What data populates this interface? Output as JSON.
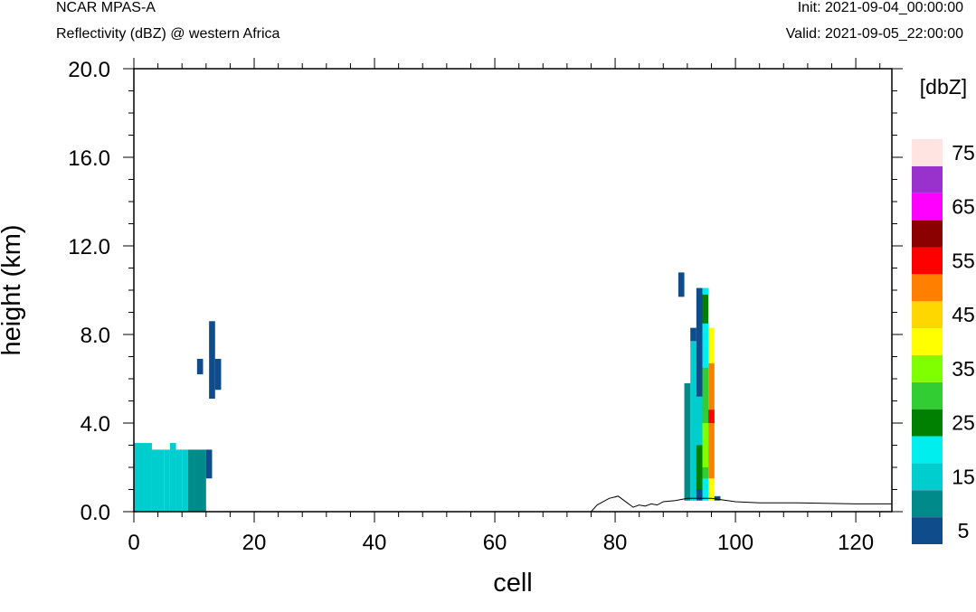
{
  "header": {
    "model": "NCAR MPAS-A",
    "field": "Reflectivity (dBZ) @ western Africa",
    "init": "Init: 2021-09-04_00:00:00",
    "valid": "Valid: 2021-09-05_22:00:00"
  },
  "chart_data": {
    "type": "heatmap",
    "xlabel": "cell",
    "ylabel": "height (km)",
    "xlim": [
      0,
      126
    ],
    "ylim": [
      0,
      20
    ],
    "xticks": [
      0,
      20,
      40,
      60,
      80,
      100,
      120
    ],
    "yticks": [
      0,
      4,
      8,
      12,
      16,
      20
    ],
    "ytick_labels": [
      "0.0",
      "4.0",
      "8.0",
      "12.0",
      "16.0",
      "20.0"
    ],
    "colorbar": {
      "unit": "[dbZ]",
      "levels": [
        5,
        10,
        15,
        20,
        25,
        30,
        35,
        40,
        45,
        50,
        55,
        60,
        65,
        70,
        75
      ],
      "tick_labels": [
        "5",
        "15",
        "25",
        "35",
        "45",
        "55",
        "65",
        "75"
      ],
      "colors": [
        "#0f4c8c",
        "#008b8b",
        "#00cdcd",
        "#00eeee",
        "#008000",
        "#32cd32",
        "#7fff00",
        "#ffff00",
        "#ffd700",
        "#ff7f00",
        "#ff0000",
        "#8b0000",
        "#ff00ff",
        "#9932cc",
        "#ffe4e1"
      ]
    },
    "cells": [
      {
        "x": [
          0,
          3
        ],
        "y": [
          0,
          3.1
        ],
        "dbz": 15
      },
      {
        "x": [
          3,
          5
        ],
        "y": [
          0,
          2.8
        ],
        "dbz": 15
      },
      {
        "x": [
          5,
          6
        ],
        "y": [
          0,
          2.8
        ],
        "dbz": 15
      },
      {
        "x": [
          6,
          7
        ],
        "y": [
          0,
          3.1
        ],
        "dbz": 15
      },
      {
        "x": [
          7,
          8
        ],
        "y": [
          0,
          2.8
        ],
        "dbz": 15
      },
      {
        "x": [
          8,
          9
        ],
        "y": [
          0,
          2.8
        ],
        "dbz": 15
      },
      {
        "x": [
          9,
          10
        ],
        "y": [
          0,
          2.8
        ],
        "dbz": 10
      },
      {
        "x": [
          10,
          12
        ],
        "y": [
          0,
          2.8
        ],
        "dbz": 10
      },
      {
        "x": [
          12,
          13
        ],
        "y": [
          1.5,
          2.8
        ],
        "dbz": 5
      },
      {
        "x": [
          0,
          1
        ],
        "y": [
          0,
          2.8
        ],
        "dbz": 15
      },
      {
        "x": [
          10.5,
          11.5
        ],
        "y": [
          6.2,
          6.9
        ],
        "dbz": 5
      },
      {
        "x": [
          12.5,
          13.5
        ],
        "y": [
          5.1,
          8.6
        ],
        "dbz": 5
      },
      {
        "x": [
          13.5,
          14.5
        ],
        "y": [
          5.5,
          6.9
        ],
        "dbz": 5
      },
      {
        "x": [
          90.5,
          91.5
        ],
        "y": [
          9.7,
          10.8
        ],
        "dbz": 5
      },
      {
        "x": [
          91.5,
          92.5
        ],
        "y": [
          0.5,
          5.8
        ],
        "dbz": 10
      },
      {
        "x": [
          92.5,
          93.5
        ],
        "y": [
          0.5,
          7.7
        ],
        "dbz": 15
      },
      {
        "x": [
          92.5,
          93.5
        ],
        "y": [
          7.7,
          8.3
        ],
        "dbz": 5
      },
      {
        "x": [
          93.5,
          94.5
        ],
        "y": [
          0.5,
          10.1
        ],
        "dbz": 5
      },
      {
        "x": [
          93.5,
          94.5
        ],
        "y": [
          1,
          3
        ],
        "dbz": 25
      },
      {
        "x": [
          93.5,
          94.5
        ],
        "y": [
          3,
          5.2
        ],
        "dbz": 15
      },
      {
        "x": [
          94.5,
          95.5
        ],
        "y": [
          0.5,
          10.1
        ],
        "dbz": 20
      },
      {
        "x": [
          94.5,
          95.5
        ],
        "y": [
          1.5,
          6.5
        ],
        "dbz": 30
      },
      {
        "x": [
          94.5,
          95.5
        ],
        "y": [
          2,
          4
        ],
        "dbz": 35
      },
      {
        "x": [
          94.5,
          95.5
        ],
        "y": [
          8.5,
          9.8
        ],
        "dbz": 25
      },
      {
        "x": [
          95.5,
          96.5
        ],
        "y": [
          0.5,
          8.3
        ],
        "dbz": 40
      },
      {
        "x": [
          95.5,
          96.5
        ],
        "y": [
          1.5,
          6.7
        ],
        "dbz": 50
      },
      {
        "x": [
          95.5,
          96.5
        ],
        "y": [
          4,
          4.6
        ],
        "dbz": 55
      },
      {
        "x": [
          96.5,
          97.5
        ],
        "y": [
          0.5,
          0.7
        ],
        "dbz": 5
      }
    ],
    "terrain": {
      "x": [
        0,
        76,
        77,
        79,
        80.5,
        82,
        83,
        84,
        85,
        86,
        87,
        88,
        90,
        92,
        96,
        100,
        104,
        110,
        120,
        126
      ],
      "y": [
        0,
        0,
        0.3,
        0.6,
        0.7,
        0.4,
        0.2,
        0.3,
        0.25,
        0.35,
        0.3,
        0.45,
        0.5,
        0.6,
        0.6,
        0.45,
        0.4,
        0.4,
        0.35,
        0.35
      ]
    }
  }
}
